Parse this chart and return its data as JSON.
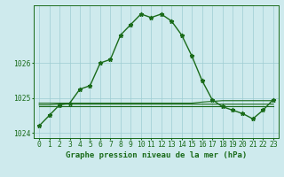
{
  "title": "Graphe pression niveau de la mer (hPa)",
  "background_color": "#ceeaed",
  "grid_color": "#9ecdd2",
  "line_color": "#1a6b1a",
  "hours": [
    0,
    1,
    2,
    3,
    4,
    5,
    6,
    7,
    8,
    9,
    10,
    11,
    12,
    13,
    14,
    15,
    16,
    17,
    18,
    19,
    20,
    21,
    22,
    23
  ],
  "pressure_main": [
    1024.2,
    1024.5,
    1024.8,
    1024.85,
    1025.25,
    1025.35,
    1026.0,
    1026.1,
    1026.8,
    1027.1,
    1027.4,
    1027.3,
    1027.4,
    1027.2,
    1026.8,
    1026.2,
    1025.5,
    1024.95,
    1024.75,
    1024.65,
    1024.55,
    1024.4,
    1024.65,
    1024.95
  ],
  "pressure_band1": [
    1024.8,
    1024.8,
    1024.82,
    1024.82,
    1024.82,
    1024.82,
    1024.82,
    1024.82,
    1024.82,
    1024.82,
    1024.82,
    1024.82,
    1024.82,
    1024.82,
    1024.82,
    1024.82,
    1024.82,
    1024.82,
    1024.82,
    1024.82,
    1024.82,
    1024.82,
    1024.82,
    1024.82
  ],
  "pressure_band2": [
    1024.85,
    1024.85,
    1024.85,
    1024.85,
    1024.85,
    1024.85,
    1024.85,
    1024.85,
    1024.85,
    1024.85,
    1024.85,
    1024.85,
    1024.85,
    1024.85,
    1024.85,
    1024.85,
    1024.88,
    1024.9,
    1024.92,
    1024.92,
    1024.92,
    1024.92,
    1024.92,
    1024.92
  ],
  "pressure_band3": [
    1024.75,
    1024.75,
    1024.75,
    1024.75,
    1024.75,
    1024.75,
    1024.75,
    1024.75,
    1024.75,
    1024.75,
    1024.75,
    1024.75,
    1024.75,
    1024.75,
    1024.75,
    1024.75,
    1024.75,
    1024.75,
    1024.75,
    1024.75,
    1024.75,
    1024.75,
    1024.75,
    1024.75
  ],
  "ylim": [
    1023.85,
    1027.65
  ],
  "yticks": [
    1024,
    1025,
    1026
  ],
  "title_fontsize": 6.5,
  "tick_fontsize": 5.8
}
